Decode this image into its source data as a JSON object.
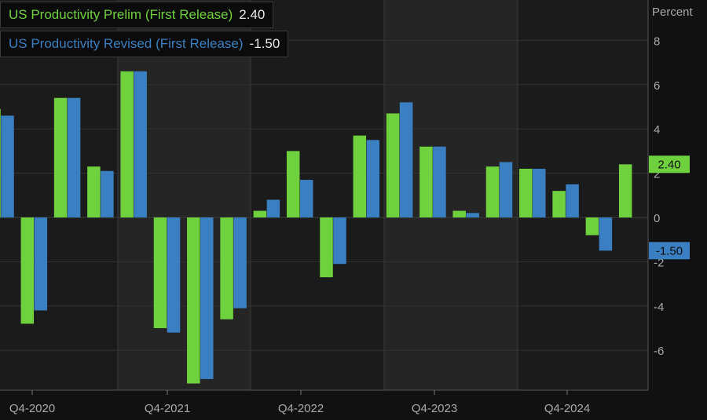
{
  "chart_data": {
    "type": "bar",
    "ylabel": "Percent",
    "ylim": [
      -7.5,
      9.5
    ],
    "yticks": [
      8,
      6,
      4,
      2,
      0,
      -2,
      -4,
      -6
    ],
    "x_tick_labels": [
      "Q4-2020",
      "Q4-2021",
      "Q4-2022",
      "Q4-2023",
      "Q4-2024"
    ],
    "grid": true,
    "legend_position": "top-left",
    "series": [
      {
        "name": "US Productivity Prelim (First Release)",
        "last_value": "2.40",
        "color": "#6fd13e",
        "values": [
          4.9,
          -4.8,
          5.4,
          2.3,
          6.6,
          -5.0,
          -7.5,
          -4.6,
          0.3,
          3.0,
          -2.7,
          3.7,
          4.7,
          3.2,
          0.3,
          2.3,
          2.2,
          1.2,
          -0.8,
          2.4
        ]
      },
      {
        "name": "US Productivity Revised (First Release)",
        "last_value": "-1.50",
        "color": "#3a7fc1",
        "values": [
          4.6,
          -4.2,
          5.4,
          2.1,
          6.6,
          -5.2,
          -7.3,
          -4.1,
          0.8,
          1.7,
          -2.1,
          3.5,
          5.2,
          3.2,
          0.2,
          2.5,
          2.2,
          1.5,
          -1.5,
          null
        ]
      }
    ],
    "price_labels": [
      "2.40",
      "-1.50"
    ]
  }
}
